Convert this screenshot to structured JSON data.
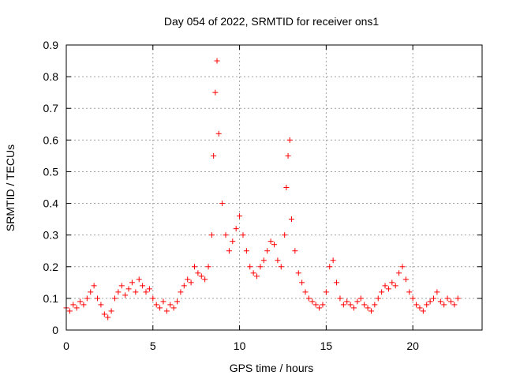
{
  "chart_data": {
    "type": "scatter",
    "title": "Day 054 of 2022, SRMTID for receiver ons1",
    "xlabel": "GPS time / hours",
    "ylabel": "SRMTID / TECUs",
    "xlim": [
      0,
      24
    ],
    "ylim": [
      0,
      0.9
    ],
    "xticks": [
      0,
      5,
      10,
      15,
      20
    ],
    "xtick_labels": [
      "0",
      "5",
      "10",
      "15",
      "20"
    ],
    "yticks": [
      0,
      0.1,
      0.2,
      0.3,
      0.4,
      0.5,
      0.6,
      0.7,
      0.8,
      0.9
    ],
    "ytick_labels": [
      "0",
      "0.1",
      "0.2",
      "0.3",
      "0.4",
      "0.5",
      "0.6",
      "0.7",
      "0.8",
      "0.9"
    ],
    "grid": true,
    "marker": "plus",
    "color": "#ff0000",
    "series": [
      {
        "name": "SRMTID",
        "x": [
          0.0,
          0.2,
          0.4,
          0.6,
          0.8,
          1.0,
          1.2,
          1.4,
          1.6,
          1.8,
          2.0,
          2.2,
          2.4,
          2.6,
          2.8,
          3.0,
          3.2,
          3.4,
          3.6,
          3.8,
          4.0,
          4.2,
          4.4,
          4.6,
          4.8,
          5.0,
          5.2,
          5.4,
          5.6,
          5.8,
          6.0,
          6.2,
          6.4,
          6.6,
          6.8,
          7.0,
          7.2,
          7.4,
          7.6,
          7.8,
          8.0,
          8.2,
          8.4,
          8.5,
          8.6,
          8.7,
          8.8,
          9.0,
          9.2,
          9.4,
          9.6,
          9.8,
          10.0,
          10.2,
          10.4,
          10.6,
          10.8,
          11.0,
          11.2,
          11.4,
          11.6,
          11.8,
          12.0,
          12.2,
          12.4,
          12.6,
          12.7,
          12.8,
          12.9,
          13.0,
          13.2,
          13.4,
          13.6,
          13.8,
          14.0,
          14.2,
          14.4,
          14.6,
          14.8,
          15.0,
          15.2,
          15.4,
          15.6,
          15.8,
          16.0,
          16.2,
          16.4,
          16.6,
          16.8,
          17.0,
          17.2,
          17.4,
          17.6,
          17.8,
          18.0,
          18.2,
          18.4,
          18.6,
          18.8,
          19.0,
          19.2,
          19.4,
          19.6,
          19.8,
          20.0,
          20.2,
          20.4,
          20.6,
          20.8,
          21.0,
          21.2,
          21.4,
          21.6,
          21.8,
          22.0,
          22.2,
          22.4,
          22.6
        ],
        "values": [
          0.07,
          0.06,
          0.08,
          0.07,
          0.09,
          0.08,
          0.1,
          0.12,
          0.14,
          0.1,
          0.08,
          0.05,
          0.04,
          0.06,
          0.1,
          0.12,
          0.14,
          0.11,
          0.13,
          0.15,
          0.12,
          0.16,
          0.14,
          0.12,
          0.13,
          0.1,
          0.08,
          0.07,
          0.09,
          0.06,
          0.08,
          0.07,
          0.09,
          0.12,
          0.14,
          0.16,
          0.15,
          0.2,
          0.18,
          0.17,
          0.16,
          0.2,
          0.3,
          0.55,
          0.75,
          0.85,
          0.62,
          0.4,
          0.3,
          0.25,
          0.28,
          0.32,
          0.36,
          0.3,
          0.25,
          0.2,
          0.18,
          0.17,
          0.2,
          0.22,
          0.25,
          0.28,
          0.27,
          0.22,
          0.2,
          0.3,
          0.45,
          0.55,
          0.6,
          0.35,
          0.25,
          0.18,
          0.15,
          0.12,
          0.1,
          0.09,
          0.08,
          0.07,
          0.08,
          0.12,
          0.2,
          0.22,
          0.15,
          0.1,
          0.08,
          0.09,
          0.08,
          0.07,
          0.09,
          0.1,
          0.08,
          0.07,
          0.06,
          0.08,
          0.1,
          0.12,
          0.14,
          0.13,
          0.15,
          0.14,
          0.18,
          0.2,
          0.16,
          0.12,
          0.1,
          0.08,
          0.07,
          0.06,
          0.08,
          0.09,
          0.1,
          0.12,
          0.09,
          0.08,
          0.1,
          0.09,
          0.08,
          0.1
        ]
      }
    ]
  }
}
